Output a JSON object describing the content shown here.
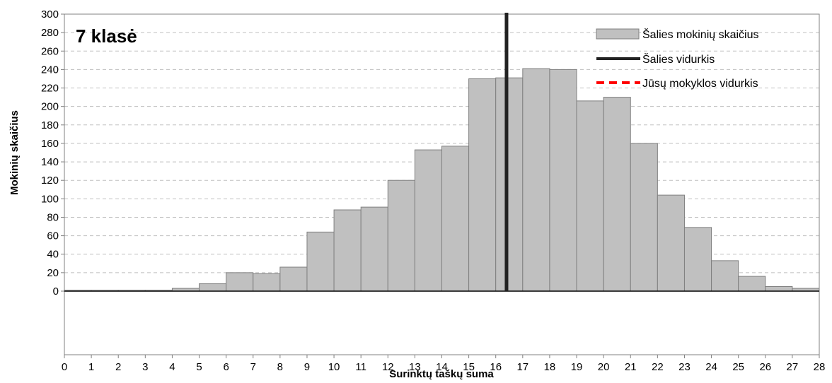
{
  "chart_data": {
    "type": "bar",
    "title": "7 klasė",
    "xlabel": "Surinktų taškų suma",
    "ylabel": "Mokinių skaičius",
    "x_ticks": [
      0,
      1,
      2,
      3,
      4,
      5,
      6,
      7,
      8,
      9,
      10,
      11,
      12,
      13,
      14,
      15,
      16,
      17,
      18,
      19,
      20,
      21,
      22,
      23,
      24,
      25,
      26,
      27,
      28
    ],
    "y_ticks": [
      0,
      20,
      40,
      60,
      80,
      100,
      120,
      140,
      160,
      180,
      200,
      220,
      240,
      260,
      280,
      300
    ],
    "xlim": [
      0,
      28
    ],
    "ylim": [
      0,
      300
    ],
    "grid": true,
    "legend_position": "top-right",
    "series": [
      {
        "name": "Šalies mokinių skaičius",
        "type": "bar",
        "color": "#c0c0c0",
        "bins": [
          {
            "x": 0,
            "value": 1
          },
          {
            "x": 1,
            "value": 1
          },
          {
            "x": 2,
            "value": 1
          },
          {
            "x": 3,
            "value": 1
          },
          {
            "x": 4,
            "value": 3
          },
          {
            "x": 5,
            "value": 8
          },
          {
            "x": 6,
            "value": 20
          },
          {
            "x": 7,
            "value": 19
          },
          {
            "x": 8,
            "value": 26
          },
          {
            "x": 9,
            "value": 64
          },
          {
            "x": 10,
            "value": 88
          },
          {
            "x": 11,
            "value": 91
          },
          {
            "x": 12,
            "value": 120
          },
          {
            "x": 13,
            "value": 153
          },
          {
            "x": 14,
            "value": 157
          },
          {
            "x": 15,
            "value": 230
          },
          {
            "x": 16,
            "value": 231
          },
          {
            "x": 17,
            "value": 241
          },
          {
            "x": 18,
            "value": 240
          },
          {
            "x": 19,
            "value": 206
          },
          {
            "x": 20,
            "value": 210
          },
          {
            "x": 21,
            "value": 160
          },
          {
            "x": 22,
            "value": 104
          },
          {
            "x": 23,
            "value": 69
          },
          {
            "x": 24,
            "value": 33
          },
          {
            "x": 25,
            "value": 16
          },
          {
            "x": 26,
            "value": 5
          },
          {
            "x": 27,
            "value": 3
          }
        ]
      },
      {
        "name": "Šalies vidurkis",
        "type": "vline",
        "color": "#222222",
        "x": 16.4
      },
      {
        "name": "Jūsų mokyklos vidurkis",
        "type": "vline",
        "color": "#ff0000",
        "dashed": true
      }
    ]
  }
}
